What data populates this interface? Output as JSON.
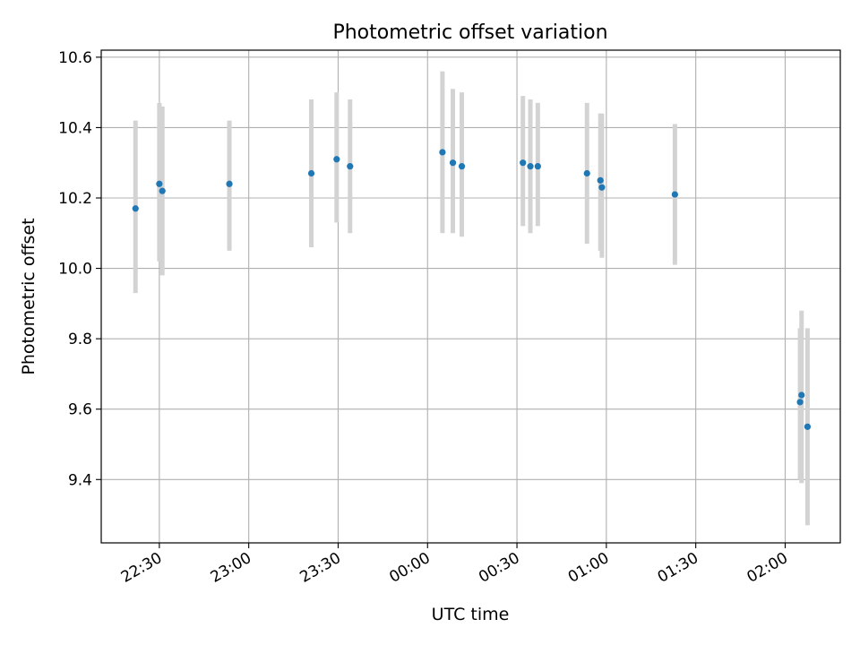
{
  "chart_data": {
    "type": "scatter",
    "title": "Photometric offset variation",
    "xlabel": "UTC time",
    "ylabel": "Photometric offset",
    "x_unit": "UTC clock time (HH:MM), 22:30 day 1 through 02:00 day 2",
    "xlim": [
      "22:10:30",
      "02:18:30"
    ],
    "ylim": [
      9.22,
      10.62
    ],
    "x_ticks": [
      "22:30",
      "23:00",
      "23:30",
      "00:00",
      "00:30",
      "01:00",
      "01:30",
      "02:00"
    ],
    "y_ticks": [
      9.4,
      9.6,
      9.8,
      10.0,
      10.2,
      10.4,
      10.6
    ],
    "y_tick_labels": [
      "9.4",
      "9.6",
      "9.8",
      "10.0",
      "10.2",
      "10.4",
      "10.6"
    ],
    "grid": true,
    "colors": {
      "point": "#1f77b4",
      "errorbar": "#d3d3d3",
      "grid": "#b0b0b0",
      "axes": "#000000"
    },
    "points": [
      {
        "time": "22:22:00",
        "y": 10.17,
        "lo": 9.93,
        "hi": 10.42
      },
      {
        "time": "22:30:00",
        "y": 10.24,
        "lo": 10.02,
        "hi": 10.47
      },
      {
        "time": "22:31:00",
        "y": 10.22,
        "lo": 9.98,
        "hi": 10.46
      },
      {
        "time": "22:53:30",
        "y": 10.24,
        "lo": 10.05,
        "hi": 10.42
      },
      {
        "time": "23:21:00",
        "y": 10.27,
        "lo": 10.06,
        "hi": 10.48
      },
      {
        "time": "23:29:30",
        "y": 10.31,
        "lo": 10.13,
        "hi": 10.5
      },
      {
        "time": "23:34:00",
        "y": 10.29,
        "lo": 10.1,
        "hi": 10.48
      },
      {
        "time": "00:05:00",
        "y": 10.33,
        "lo": 10.1,
        "hi": 10.56
      },
      {
        "time": "00:08:30",
        "y": 10.3,
        "lo": 10.1,
        "hi": 10.51
      },
      {
        "time": "00:11:30",
        "y": 10.29,
        "lo": 10.09,
        "hi": 10.5
      },
      {
        "time": "00:32:00",
        "y": 10.3,
        "lo": 10.12,
        "hi": 10.49
      },
      {
        "time": "00:34:30",
        "y": 10.29,
        "lo": 10.1,
        "hi": 10.48
      },
      {
        "time": "00:37:00",
        "y": 10.29,
        "lo": 10.12,
        "hi": 10.47
      },
      {
        "time": "00:53:30",
        "y": 10.27,
        "lo": 10.07,
        "hi": 10.47
      },
      {
        "time": "00:58:00",
        "y": 10.25,
        "lo": 10.05,
        "hi": 10.44
      },
      {
        "time": "00:58:30",
        "y": 10.23,
        "lo": 10.03,
        "hi": 10.44
      },
      {
        "time": "01:23:00",
        "y": 10.21,
        "lo": 10.01,
        "hi": 10.41
      },
      {
        "time": "02:05:00",
        "y": 9.62,
        "lo": 9.4,
        "hi": 9.83
      },
      {
        "time": "02:05:30",
        "y": 9.64,
        "lo": 9.39,
        "hi": 9.88
      },
      {
        "time": "02:07:30",
        "y": 9.55,
        "lo": 9.27,
        "hi": 9.83
      }
    ]
  }
}
